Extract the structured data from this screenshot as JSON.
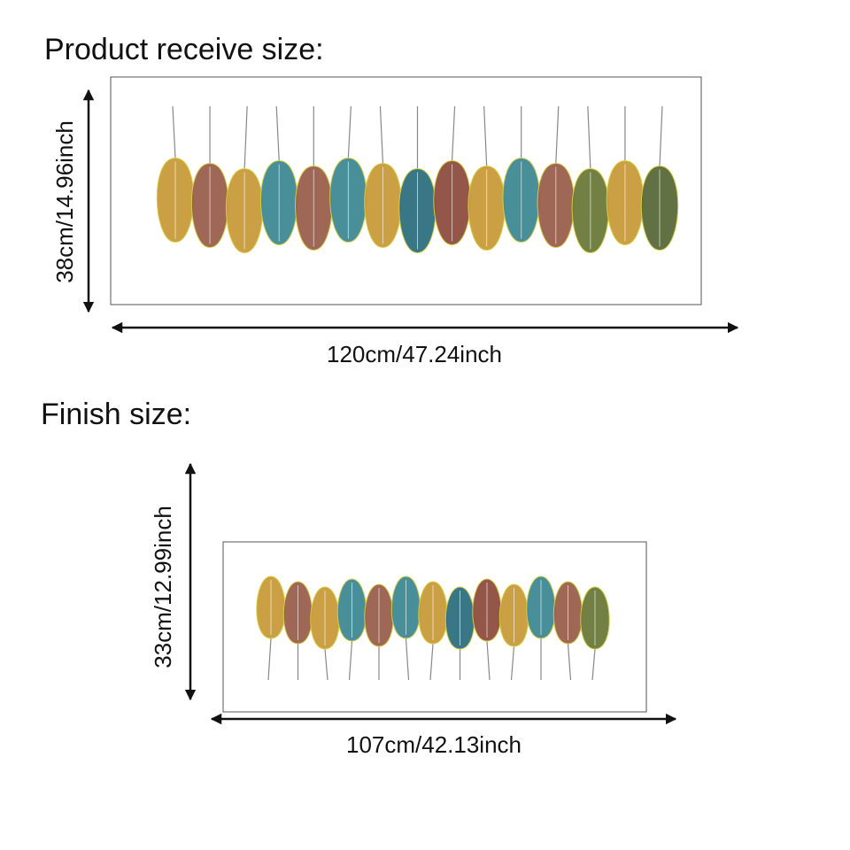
{
  "receive": {
    "title": "Product receive size:",
    "height_label": "38cm/14.96inch",
    "width_label": "120cm/47.24inch"
  },
  "finish": {
    "title": "Finish size:",
    "height_label": "33cm/12.99inch",
    "width_label": "107cm/42.13inch"
  }
}
